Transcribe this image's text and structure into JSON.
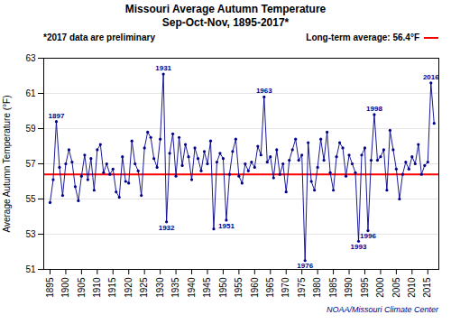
{
  "chart_data": {
    "type": "line",
    "title": "Missouri Average Autumn Temperature",
    "subtitle": "Sep-Oct-Nov, 1895-2017*",
    "notes": [
      "*2017 data are preliminary"
    ],
    "ylabel": "Average Autumn Temperature (°F)",
    "caption": "NOAA/Missouri Climate Center",
    "x": [
      1895,
      1896,
      1897,
      1898,
      1899,
      1900,
      1901,
      1902,
      1903,
      1904,
      1905,
      1906,
      1907,
      1908,
      1909,
      1910,
      1911,
      1912,
      1913,
      1914,
      1915,
      1916,
      1917,
      1918,
      1919,
      1920,
      1921,
      1922,
      1923,
      1924,
      1925,
      1926,
      1927,
      1928,
      1929,
      1930,
      1931,
      1932,
      1933,
      1934,
      1935,
      1936,
      1937,
      1938,
      1939,
      1940,
      1941,
      1942,
      1943,
      1944,
      1945,
      1946,
      1947,
      1948,
      1949,
      1950,
      1951,
      1952,
      1953,
      1954,
      1955,
      1956,
      1957,
      1958,
      1959,
      1960,
      1961,
      1962,
      1963,
      1964,
      1965,
      1966,
      1967,
      1968,
      1969,
      1970,
      1971,
      1972,
      1973,
      1974,
      1975,
      1976,
      1977,
      1978,
      1979,
      1980,
      1981,
      1982,
      1983,
      1984,
      1985,
      1986,
      1987,
      1988,
      1989,
      1990,
      1991,
      1992,
      1993,
      1994,
      1995,
      1996,
      1997,
      1998,
      1999,
      2000,
      2001,
      2002,
      2003,
      2004,
      2005,
      2006,
      2007,
      2008,
      2009,
      2010,
      2011,
      2012,
      2013,
      2014,
      2015,
      2016,
      2017
    ],
    "values": [
      54.8,
      56.1,
      59.4,
      56.8,
      55.2,
      57.0,
      57.8,
      57.1,
      55.7,
      54.9,
      56.3,
      57.5,
      56.1,
      57.3,
      55.5,
      57.8,
      58.1,
      56.5,
      57.0,
      56.4,
      56.7,
      55.4,
      55.1,
      57.4,
      56.0,
      55.9,
      58.3,
      57.0,
      56.6,
      55.2,
      57.9,
      58.8,
      58.5,
      57.3,
      56.8,
      58.4,
      62.1,
      53.7,
      57.6,
      58.7,
      56.3,
      58.5,
      56.9,
      58.1,
      57.4,
      56.1,
      57.9,
      57.3,
      56.6,
      57.7,
      57.0,
      58.3,
      53.3,
      57.1,
      57.6,
      57.3,
      53.8,
      56.4,
      57.7,
      58.4,
      56.3,
      55.9,
      57.0,
      56.6,
      57.1,
      56.8,
      58.0,
      57.5,
      60.8,
      57.1,
      57.4,
      56.2,
      57.8,
      56.4,
      57.0,
      55.4,
      57.2,
      57.8,
      58.4,
      57.2,
      57.5,
      51.5,
      58.2,
      56.0,
      55.5,
      56.8,
      58.4,
      57.2,
      58.8,
      56.5,
      55.5,
      57.4,
      58.2,
      57.9,
      56.3,
      57.5,
      57.0,
      56.5,
      52.6,
      57.5,
      57.9,
      53.2,
      57.2,
      59.8,
      57.2,
      57.4,
      57.8,
      55.5,
      58.9,
      57.8,
      56.7,
      55.0,
      56.4,
      57.1,
      56.7,
      57.4,
      57.0,
      58.1,
      56.4,
      56.9,
      57.1,
      61.6,
      59.3
    ],
    "color": "#00008B",
    "marker": "dot",
    "xlim": [
      1893,
      2018.5
    ],
    "xticks": [
      1895,
      1900,
      1905,
      1910,
      1915,
      1920,
      1925,
      1930,
      1935,
      1940,
      1945,
      1950,
      1955,
      1960,
      1965,
      1970,
      1975,
      1980,
      1985,
      1990,
      1995,
      2000,
      2005,
      2010,
      2015
    ],
    "ylim": [
      51.0,
      63.0
    ],
    "yticks": [
      51.0,
      53.0,
      55.0,
      57.0,
      59.0,
      61.0,
      63.0
    ],
    "grid": true,
    "hlines": [
      {
        "y": 56.4,
        "color": "#FF0000",
        "label": "Long-term average: 56.4°F"
      }
    ],
    "annotations": [
      {
        "text": "1897",
        "x": 1897,
        "y": 59.4,
        "position": "above",
        "color": "#00008B"
      },
      {
        "text": "1931",
        "x": 1931,
        "y": 62.1,
        "position": "above",
        "color": "#00008B"
      },
      {
        "text": "1932",
        "x": 1932,
        "y": 53.7,
        "position": "below",
        "color": "#00008B"
      },
      {
        "text": "1951",
        "x": 1951,
        "y": 53.8,
        "position": "below",
        "color": "#00008B"
      },
      {
        "text": "1963",
        "x": 1963,
        "y": 60.8,
        "position": "above",
        "color": "#00008B"
      },
      {
        "text": "1976",
        "x": 1976,
        "y": 51.5,
        "position": "below",
        "color": "#00008B"
      },
      {
        "text": "1993",
        "x": 1993,
        "y": 52.6,
        "position": "below",
        "color": "#00008B"
      },
      {
        "text": "1996",
        "x": 1996,
        "y": 53.2,
        "position": "below",
        "color": "#00008B"
      },
      {
        "text": "1998",
        "x": 1998,
        "y": 59.8,
        "position": "above",
        "color": "#00008B"
      },
      {
        "text": "2016",
        "x": 2016,
        "y": 61.6,
        "position": "above",
        "color": "#00008B"
      }
    ]
  }
}
